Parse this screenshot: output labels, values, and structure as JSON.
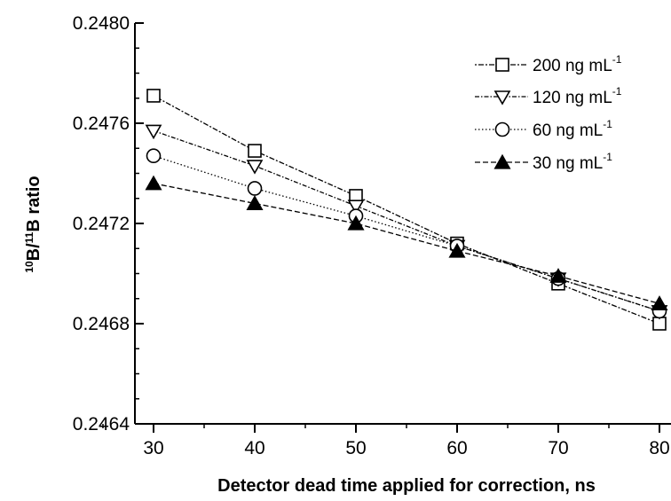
{
  "chart_data": {
    "type": "line",
    "xlabel": "Detector dead time applied for correction, ns",
    "ylabel": {
      "sup1": "10",
      "b1": "B/",
      "sup2": "11",
      "b2": "B ratio"
    },
    "x": [
      30,
      40,
      50,
      60,
      70,
      80
    ],
    "xlim": [
      25,
      80
    ],
    "ylim": [
      0.2464,
      0.248
    ],
    "x_ticks": [
      "30",
      "40",
      "50",
      "60",
      "70",
      "80"
    ],
    "y_ticks": [
      "0.2464",
      "0.2468",
      "0.2472",
      "0.2476",
      "0.2480"
    ],
    "y_tick_values": [
      0.2464,
      0.2468,
      0.2472,
      0.2476,
      0.248
    ],
    "grid": false,
    "legend_position": "top-right",
    "series": [
      {
        "name": "200 ng mL",
        "unit_sup": "-1",
        "marker": "square-open",
        "dash": "dot-dash",
        "values": [
          0.24771,
          0.24749,
          0.24731,
          0.24712,
          0.24696,
          0.2468
        ]
      },
      {
        "name": "120 ng mL",
        "unit_sup": "-1",
        "marker": "triangle-down-open",
        "dash": "dash-dot",
        "values": [
          0.24757,
          0.24743,
          0.24727,
          0.24711,
          0.24698,
          0.24685
        ]
      },
      {
        "name": "60 ng mL",
        "unit_sup": "-1",
        "marker": "circle-open",
        "dash": "dotted",
        "values": [
          0.24747,
          0.24734,
          0.24723,
          0.24711,
          0.24698,
          0.24685
        ]
      },
      {
        "name": "30 ng mL",
        "unit_sup": "-1",
        "marker": "triangle-up-filled",
        "dash": "dashed",
        "values": [
          0.24736,
          0.24728,
          0.2472,
          0.24709,
          0.24699,
          0.24688
        ]
      }
    ]
  }
}
